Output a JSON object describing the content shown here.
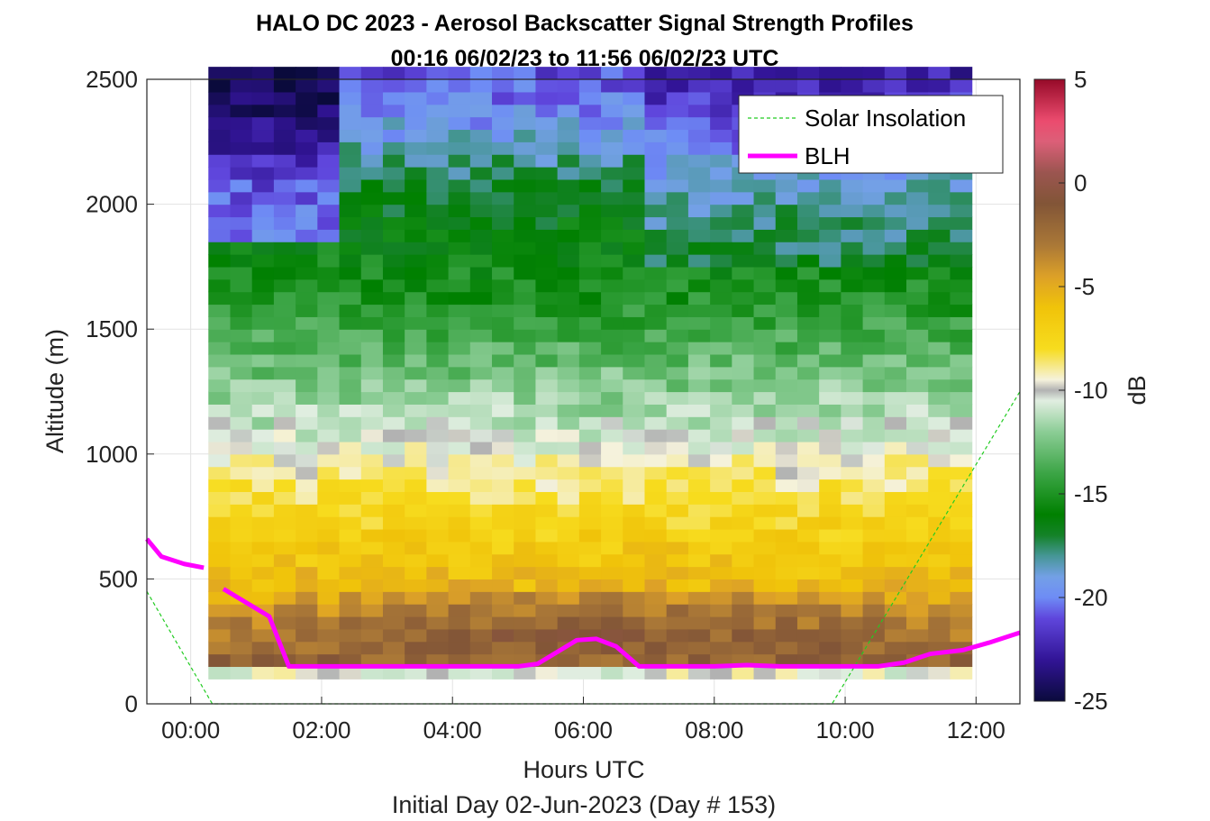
{
  "chart_data": {
    "type": "heatmap",
    "title": "HALO DC 2023 - Aerosol Backscatter Signal Strength Profiles",
    "subtitle": "00:16 06/02/23 to 11:56 06/02/23  UTC",
    "xlabel": "Hours UTC",
    "footer": "Initial Day 02-Jun-2023 (Day # 153)",
    "ylabel": "Altitude (m)",
    "colorbar_label": "dB",
    "x_unit": "hours",
    "xlim": [
      -0.67,
      12.67
    ],
    "ylim": [
      0,
      2500
    ],
    "x_ticks": [
      0,
      2,
      4,
      6,
      8,
      10,
      12
    ],
    "x_tick_labels": [
      "00:00",
      "02:00",
      "04:00",
      "06:00",
      "08:00",
      "10:00",
      "12:00"
    ],
    "y_ticks": [
      0,
      500,
      1000,
      1500,
      2000,
      2500
    ],
    "y_tick_labels": [
      "0",
      "500",
      "1000",
      "1500",
      "2000",
      "2500"
    ],
    "clim": [
      -25,
      5
    ],
    "colorbar_ticks": [
      5,
      0,
      -5,
      -10,
      -15,
      -20,
      -25
    ],
    "colorbar_tick_labels": [
      "5",
      "0",
      "-5",
      "-10",
      "-15",
      "-20",
      "-25"
    ],
    "grid": true,
    "legend_position": "top-right",
    "heatmap": {
      "x_start": 0.27,
      "x_end": 11.93,
      "time_step_hours": 0.3333,
      "alt_start_m": 100,
      "alt_step_m": 50,
      "rows": 49,
      "profile_anchors": [
        {
          "alt": 100,
          "value": -10
        },
        {
          "alt": 150,
          "value": -2
        },
        {
          "alt": 300,
          "value": -3
        },
        {
          "alt": 450,
          "value": -5.5
        },
        {
          "alt": 650,
          "value": -7
        },
        {
          "alt": 850,
          "value": -8.5
        },
        {
          "alt": 1000,
          "value": -10
        },
        {
          "alt": 1150,
          "value": -11.5
        },
        {
          "alt": 1350,
          "value": -13
        },
        {
          "alt": 1600,
          "value": -15
        },
        {
          "alt": 1850,
          "value": -16
        },
        {
          "alt": 2050,
          "value": -17
        },
        {
          "alt": 2250,
          "value": -19
        },
        {
          "alt": 2500,
          "value": -21
        }
      ]
    },
    "series": [
      {
        "name": "Solar Insolation",
        "style": "dashed",
        "color": "#22cc22",
        "x": [
          -0.67,
          0.33,
          9.8,
          12.67
        ],
        "y": [
          450,
          0,
          0,
          1250
        ]
      },
      {
        "name": "BLH",
        "style": "solid",
        "color": "#ff00ff",
        "segments": [
          {
            "x": [
              -0.67,
              -0.45,
              -0.1,
              0.2
            ],
            "y": [
              660,
              590,
              560,
              545
            ]
          },
          {
            "x": [
              0.5,
              1.2,
              1.5,
              2.0,
              3.0,
              4.0,
              5.0,
              5.3,
              5.9,
              6.2,
              6.5,
              6.85,
              7.5,
              8.0,
              8.5,
              9.0,
              9.5,
              10.0,
              10.5,
              10.9,
              11.3,
              11.8,
              12.2,
              12.67
            ],
            "y": [
              460,
              350,
              150,
              150,
              150,
              150,
              150,
              160,
              255,
              260,
              230,
              150,
              150,
              150,
              155,
              150,
              150,
              150,
              150,
              165,
              200,
              215,
              245,
              285
            ]
          }
        ]
      }
    ]
  }
}
